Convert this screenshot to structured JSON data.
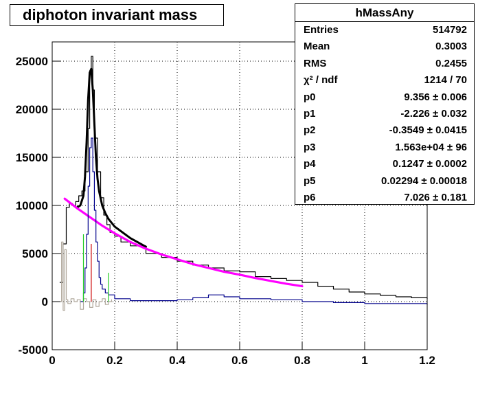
{
  "title": "diphoton invariant mass",
  "stats": {
    "name": "hMassAny",
    "rows": [
      {
        "label": "Entries",
        "value": "514792"
      },
      {
        "label": "Mean",
        "value": "0.3003"
      },
      {
        "label": "RMS",
        "value": "0.2455"
      },
      {
        "label": "χ² / ndf",
        "value": "1214 / 70"
      },
      {
        "label": "p0",
        "value": "9.356 ± 0.006"
      },
      {
        "label": "p1",
        "value": "-2.226 ± 0.032"
      },
      {
        "label": "p2",
        "value": "-0.3549 ± 0.0415"
      },
      {
        "label": "p3",
        "value": "1.563e+04 ± 96"
      },
      {
        "label": "p4",
        "value": "0.1247 ± 0.0002"
      },
      {
        "label": "p5",
        "value": "0.02294 ± 0.00018"
      },
      {
        "label": "p6",
        "value": "7.026 ± 0.181"
      }
    ]
  },
  "colors": {
    "histogram": "#000000",
    "fit": "#000000",
    "background_fit": "#ff00ff",
    "residual": "#00008b",
    "low_mass": "#b0a89c",
    "signal_window": "#22cc22",
    "peak_marker": "#cc0000"
  },
  "chart_data": {
    "type": "line",
    "xlim": [
      0,
      1.2
    ],
    "ylim": [
      -5000,
      27000
    ],
    "grid": true,
    "x_ticks": [
      "0",
      "0.2",
      "0.4",
      "0.6",
      "0.8",
      "1",
      "1.2"
    ],
    "y_ticks": [
      "-5000",
      "0",
      "5000",
      "10000",
      "15000",
      "20000",
      "25000"
    ],
    "series": [
      {
        "kind": "histogram",
        "color": "#000000",
        "x": [
          0.025,
          0.035,
          0.045,
          0.055,
          0.065,
          0.075,
          0.085,
          0.095,
          0.105,
          0.115,
          0.12,
          0.125,
          0.13,
          0.135,
          0.145,
          0.155,
          0.165,
          0.175,
          0.185,
          0.2,
          0.22,
          0.25,
          0.3,
          0.35,
          0.4,
          0.45,
          0.5,
          0.55,
          0.6,
          0.65,
          0.7,
          0.75,
          0.8,
          0.85,
          0.9,
          0.95,
          1.0,
          1.05,
          1.1,
          1.15,
          1.2
        ],
        "y": [
          2000,
          6000,
          9800,
          10200,
          10000,
          10400,
          11000,
          11500,
          13500,
          18000,
          24000,
          25500,
          22000,
          17000,
          13500,
          10800,
          9000,
          8000,
          7200,
          6800,
          6200,
          5800,
          5000,
          4600,
          4200,
          3800,
          3500,
          3200,
          3100,
          2600,
          2400,
          2200,
          2000,
          1600,
          1300,
          1000,
          800,
          650,
          500,
          400,
          300
        ]
      },
      {
        "kind": "fit",
        "color": "#000000",
        "x": [
          0.08,
          0.09,
          0.1,
          0.105,
          0.11,
          0.115,
          0.12,
          0.125,
          0.13,
          0.135,
          0.14,
          0.145,
          0.15,
          0.16,
          0.17,
          0.18,
          0.2,
          0.25,
          0.3
        ],
        "y": [
          9800,
          10000,
          11000,
          13000,
          16500,
          21000,
          23800,
          24200,
          22000,
          18500,
          15000,
          12800,
          11500,
          10000,
          9200,
          8600,
          7800,
          6600,
          5700
        ]
      },
      {
        "kind": "background",
        "color": "#ff00ff",
        "x": [
          0.04,
          0.08,
          0.12,
          0.16,
          0.2,
          0.25,
          0.3,
          0.35,
          0.4,
          0.45,
          0.5,
          0.55,
          0.6,
          0.65,
          0.7,
          0.75,
          0.8
        ],
        "y": [
          10700,
          9700,
          8800,
          7900,
          7100,
          6200,
          5500,
          4900,
          4400,
          3900,
          3500,
          3100,
          2800,
          2450,
          2150,
          1850,
          1600
        ]
      },
      {
        "kind": "residual",
        "color": "#00008b",
        "x": [
          0.09,
          0.1,
          0.105,
          0.11,
          0.115,
          0.12,
          0.125,
          0.13,
          0.135,
          0.14,
          0.145,
          0.15,
          0.155,
          0.16,
          0.17,
          0.18,
          0.2,
          0.25,
          0.3,
          0.35,
          0.4,
          0.45,
          0.5,
          0.55,
          0.6,
          0.7,
          0.8,
          0.9,
          1.0,
          1.1,
          1.2
        ],
        "y": [
          0,
          900,
          3500,
          7000,
          12000,
          16000,
          17000,
          13500,
          9500,
          6200,
          4200,
          2500,
          1800,
          1300,
          900,
          700,
          300,
          100,
          100,
          100,
          200,
          400,
          700,
          500,
          300,
          200,
          0,
          -100,
          -200,
          -200,
          -300
        ]
      },
      {
        "kind": "low-mass",
        "color": "#b0a89c",
        "x": [
          0.025,
          0.03,
          0.035,
          0.04,
          0.045,
          0.05,
          0.06,
          0.07,
          0.08,
          0.09,
          0.1,
          0.11,
          0.12,
          0.13,
          0.14,
          0.15,
          0.16,
          0.17,
          0.18,
          0.19
        ],
        "y": [
          0,
          6200,
          -900,
          5400,
          200,
          -200,
          300,
          0,
          200,
          -800,
          300,
          0,
          -600,
          200,
          -500,
          0,
          300,
          -300,
          0,
          200
        ]
      }
    ],
    "markers": [
      {
        "x": 0.1,
        "y0": 0,
        "y1": 7000,
        "color": "#22cc22"
      },
      {
        "x": 0.125,
        "y0": 0,
        "y1": 6000,
        "color": "#cc0000"
      },
      {
        "x": 0.18,
        "y0": 0,
        "y1": 3000,
        "color": "#22cc22"
      }
    ]
  }
}
